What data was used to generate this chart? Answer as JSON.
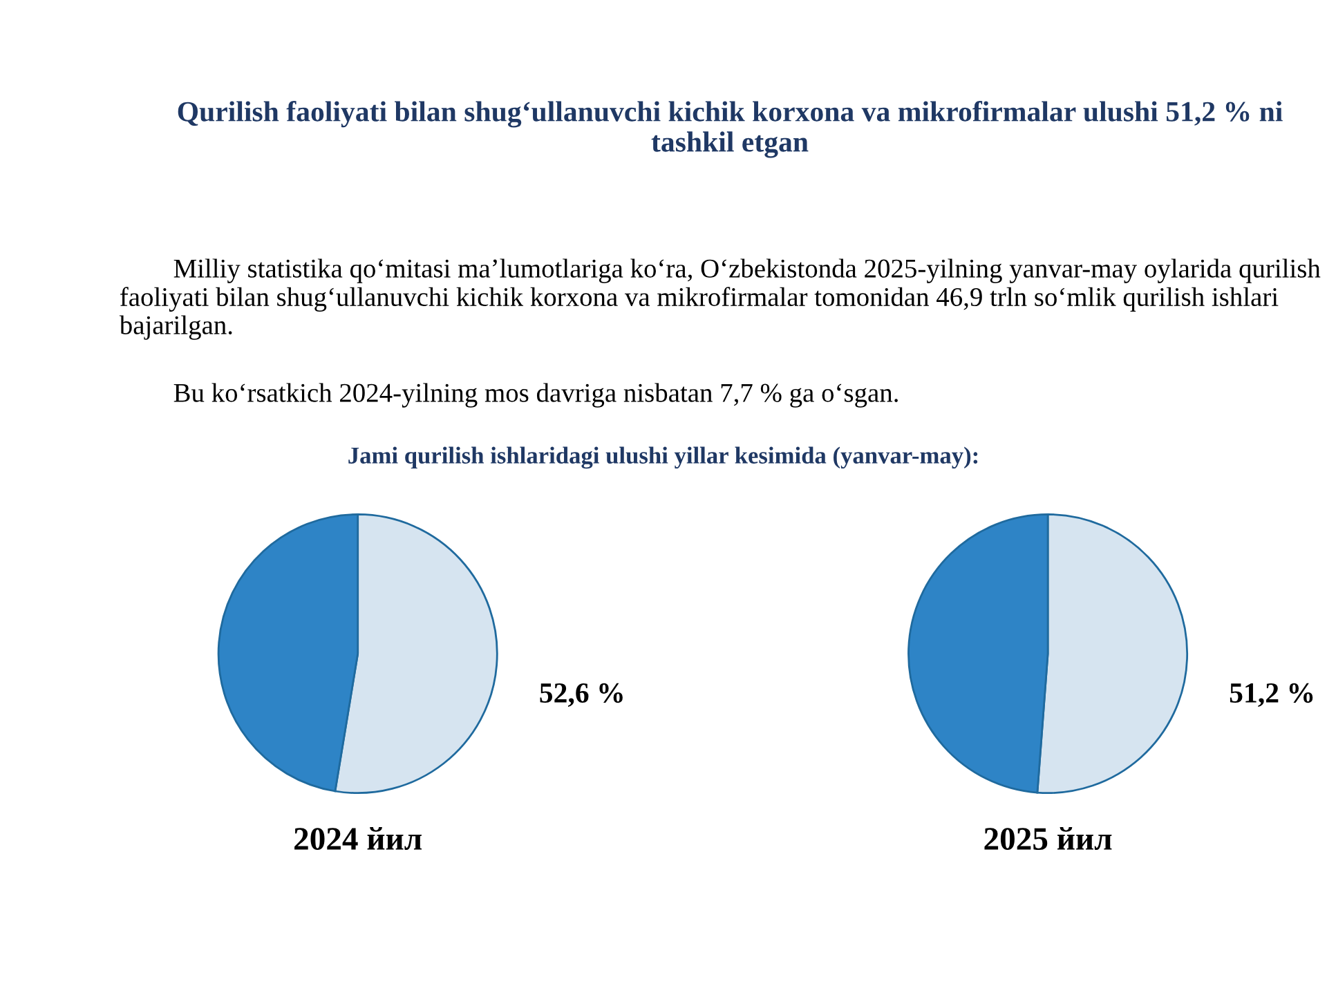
{
  "chart_data": [
    {
      "type": "pie",
      "title": "Qurilish faoliyati bilan shug‘ullanuvchi kichik korxona va mikrofirmalar ulushi 51,2 % ni tashkil etgan",
      "subtitle": "Jami qurilish ishlaridagi ulushi yillar kesimida (yanvar-may):",
      "annotations": [
        "Milliy statistika qo‘mitasi ma’lumotlariga ko‘ra, O‘zbekistonda 2025-yilning yanvar-may oylarida qurilish faoliyati bilan shug‘ullanuvchi kichik korxona va mikrofirmalar tomonidan 46,9 trln so‘mlik qurilish ishlari bajarilgan.",
        "Bu ko‘rsatkich 2024-yilning mos davriga nisbatan 7,7 % ga o‘sgan."
      ],
      "xlabel": "2024 йил",
      "categories": [
        null,
        null
      ],
      "values": [
        52.6,
        47.4
      ],
      "colors": [
        "#d6e4f0",
        "#2e84c6"
      ],
      "value_labels": [
        "52,6 %",
        null
      ]
    },
    {
      "type": "pie",
      "xlabel": "2025 йил",
      "categories": [
        null,
        null
      ],
      "values": [
        51.2,
        48.8
      ],
      "colors": [
        "#d6e4f0",
        "#2e84c6"
      ],
      "value_labels": [
        "51,2 %",
        null
      ]
    }
  ]
}
